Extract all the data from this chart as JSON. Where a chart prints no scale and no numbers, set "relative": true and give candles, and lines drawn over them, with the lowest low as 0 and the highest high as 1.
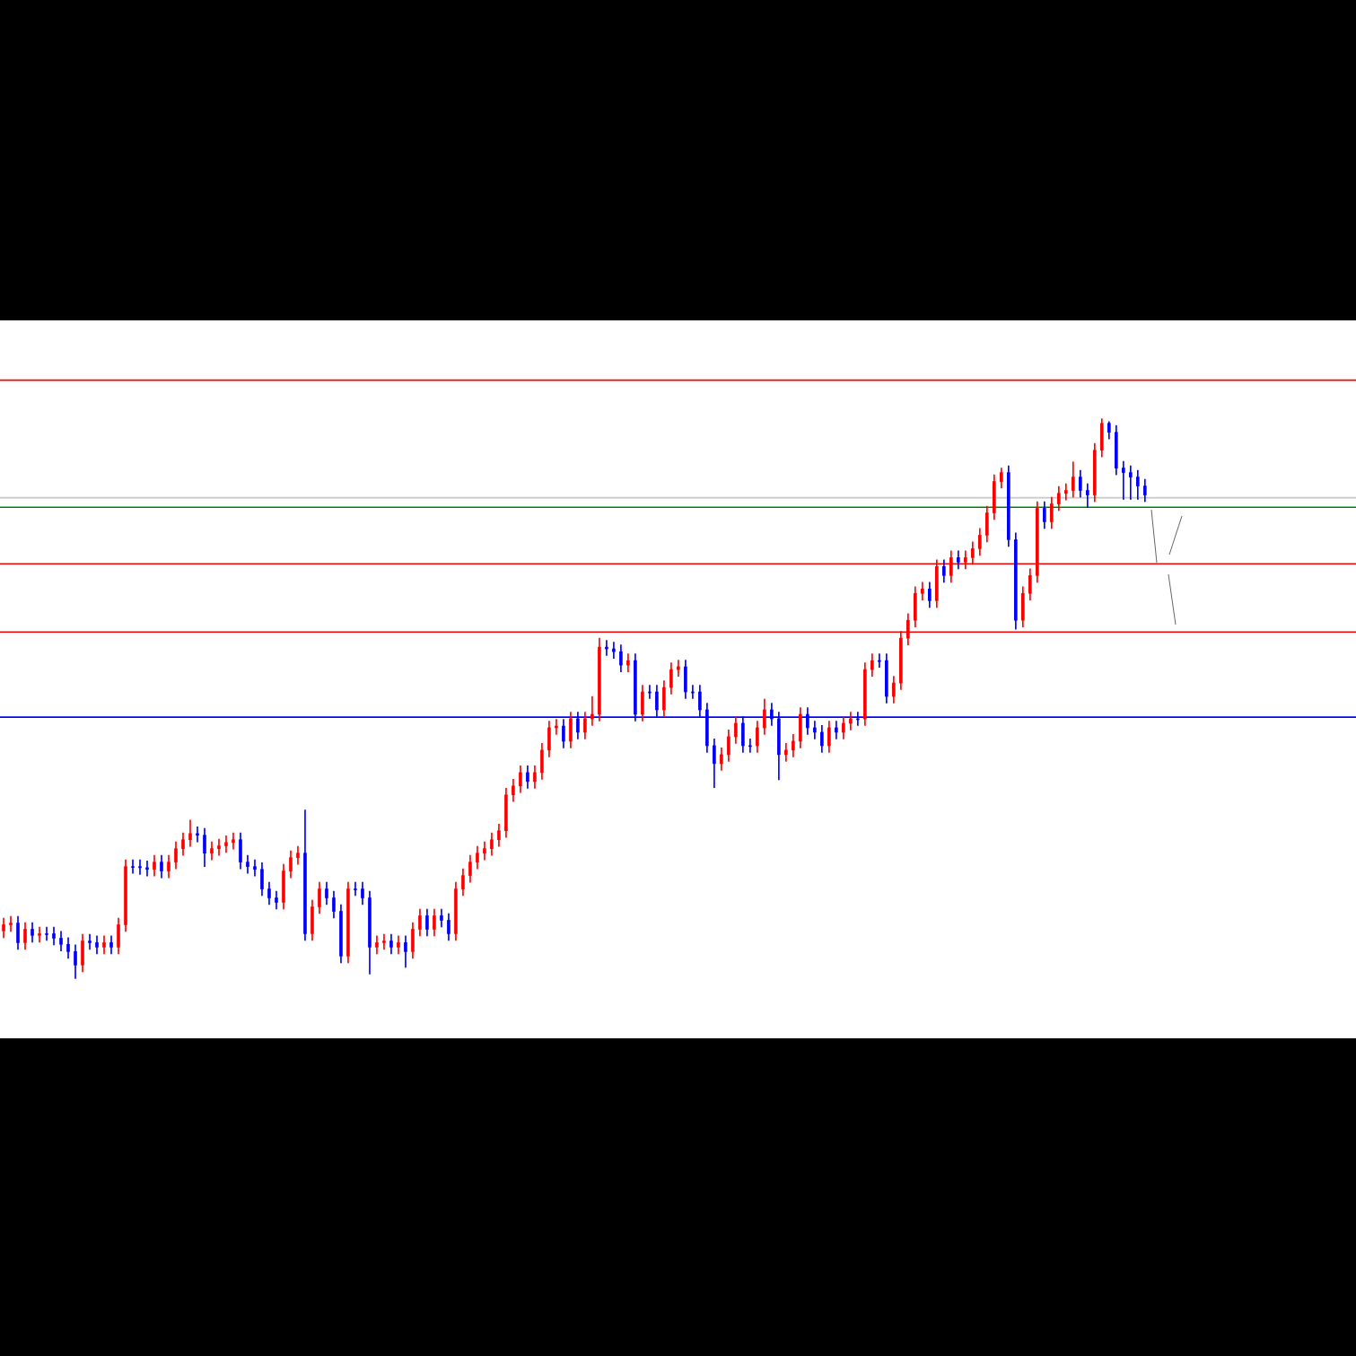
{
  "chart_data": {
    "type": "candlestick",
    "relative": true,
    "categories": [
      null,
      null,
      null,
      null,
      null,
      null,
      null,
      null,
      null,
      null,
      null,
      null,
      null,
      null,
      null,
      null,
      null,
      null,
      null,
      null,
      null,
      null,
      null,
      null,
      null,
      null,
      null,
      null,
      null,
      null,
      null,
      null,
      null,
      null,
      null,
      null,
      null,
      null,
      null,
      null,
      null,
      null,
      null,
      null,
      null,
      null,
      null,
      null,
      null,
      null,
      null,
      null,
      null,
      null,
      null,
      null,
      null,
      null,
      null,
      null,
      null,
      null,
      null,
      null,
      null,
      null,
      null,
      null,
      null,
      null,
      null,
      null,
      null,
      null,
      null,
      null,
      null,
      null,
      null,
      null,
      null,
      null,
      null,
      null,
      null,
      null,
      null,
      null,
      null,
      null,
      null,
      null,
      null,
      null,
      null,
      null,
      null,
      null,
      null,
      null,
      null,
      null,
      null,
      null,
      null,
      null,
      null,
      null,
      null,
      null,
      null,
      null,
      null,
      null,
      null,
      null,
      null,
      null,
      null,
      null,
      null,
      null,
      null,
      null,
      null,
      null,
      null,
      null,
      null,
      null,
      null,
      null,
      null,
      null,
      null,
      null,
      null,
      null,
      null,
      null,
      null,
      null,
      null,
      null,
      null,
      null,
      null,
      null,
      null,
      null,
      null,
      null,
      null,
      null,
      null,
      null,
      null,
      null,
      null,
      null
    ],
    "ohlc": [
      [
        0.085,
        0.108,
        0.073,
        0.096
      ],
      [
        0.096,
        0.111,
        0.084,
        0.099
      ],
      [
        0.099,
        0.111,
        0.052,
        0.064
      ],
      [
        0.064,
        0.1,
        0.052,
        0.088
      ],
      [
        0.088,
        0.1,
        0.065,
        0.077
      ],
      [
        0.077,
        0.092,
        0.065,
        0.08
      ],
      [
        0.08,
        0.092,
        0.068,
        0.08
      ],
      [
        0.08,
        0.092,
        0.06,
        0.072
      ],
      [
        0.072,
        0.084,
        0.049,
        0.061
      ],
      [
        0.061,
        0.073,
        0.036,
        0.048
      ],
      [
        0.048,
        0.06,
        0.0,
        0.024
      ],
      [
        0.024,
        0.079,
        0.012,
        0.067
      ],
      [
        0.067,
        0.079,
        0.052,
        0.064
      ],
      [
        0.064,
        0.076,
        0.044,
        0.056
      ],
      [
        0.056,
        0.076,
        0.044,
        0.064
      ],
      [
        0.064,
        0.076,
        0.044,
        0.056
      ],
      [
        0.056,
        0.108,
        0.044,
        0.096
      ],
      [
        0.096,
        0.212,
        0.084,
        0.2
      ],
      [
        0.2,
        0.212,
        0.188,
        0.2
      ],
      [
        0.2,
        0.212,
        0.186,
        0.198
      ],
      [
        0.198,
        0.21,
        0.183,
        0.195
      ],
      [
        0.195,
        0.22,
        0.183,
        0.208
      ],
      [
        0.208,
        0.22,
        0.18,
        0.192
      ],
      [
        0.192,
        0.22,
        0.18,
        0.208
      ],
      [
        0.208,
        0.244,
        0.196,
        0.232
      ],
      [
        0.232,
        0.26,
        0.22,
        0.248
      ],
      [
        0.248,
        0.283,
        0.236,
        0.259
      ],
      [
        0.259,
        0.271,
        0.244,
        0.256
      ],
      [
        0.256,
        0.268,
        0.2,
        0.224
      ],
      [
        0.224,
        0.244,
        0.212,
        0.232
      ],
      [
        0.232,
        0.249,
        0.22,
        0.237
      ],
      [
        0.237,
        0.255,
        0.225,
        0.243
      ],
      [
        0.243,
        0.26,
        0.231,
        0.248
      ],
      [
        0.248,
        0.26,
        0.196,
        0.208
      ],
      [
        0.208,
        0.22,
        0.188,
        0.2
      ],
      [
        0.2,
        0.212,
        0.183,
        0.195
      ],
      [
        0.195,
        0.207,
        0.148,
        0.16
      ],
      [
        0.16,
        0.172,
        0.132,
        0.144
      ],
      [
        0.144,
        0.156,
        0.124,
        0.136
      ],
      [
        0.136,
        0.204,
        0.124,
        0.192
      ],
      [
        0.192,
        0.228,
        0.18,
        0.216
      ],
      [
        0.216,
        0.236,
        0.204,
        0.224
      ],
      [
        0.224,
        0.301,
        0.068,
        0.08
      ],
      [
        0.08,
        0.14,
        0.068,
        0.128
      ],
      [
        0.128,
        0.172,
        0.116,
        0.16
      ],
      [
        0.16,
        0.172,
        0.132,
        0.144
      ],
      [
        0.144,
        0.156,
        0.108,
        0.12
      ],
      [
        0.12,
        0.132,
        0.028,
        0.04
      ],
      [
        0.04,
        0.172,
        0.028,
        0.16
      ],
      [
        0.16,
        0.172,
        0.148,
        0.16
      ],
      [
        0.16,
        0.172,
        0.132,
        0.144
      ],
      [
        0.144,
        0.156,
        0.008,
        0.056
      ],
      [
        0.056,
        0.076,
        0.044,
        0.064
      ],
      [
        0.064,
        0.079,
        0.052,
        0.067
      ],
      [
        0.067,
        0.079,
        0.044,
        0.056
      ],
      [
        0.056,
        0.076,
        0.044,
        0.064
      ],
      [
        0.064,
        0.076,
        0.02,
        0.048
      ],
      [
        0.048,
        0.1,
        0.036,
        0.088
      ],
      [
        0.088,
        0.124,
        0.076,
        0.112
      ],
      [
        0.112,
        0.124,
        0.076,
        0.088
      ],
      [
        0.088,
        0.124,
        0.076,
        0.112
      ],
      [
        0.112,
        0.124,
        0.092,
        0.104
      ],
      [
        0.104,
        0.116,
        0.068,
        0.08
      ],
      [
        0.08,
        0.172,
        0.068,
        0.16
      ],
      [
        0.16,
        0.196,
        0.148,
        0.184
      ],
      [
        0.184,
        0.22,
        0.172,
        0.208
      ],
      [
        0.208,
        0.236,
        0.196,
        0.224
      ],
      [
        0.224,
        0.244,
        0.212,
        0.232
      ],
      [
        0.232,
        0.26,
        0.22,
        0.248
      ],
      [
        0.248,
        0.276,
        0.236,
        0.264
      ],
      [
        0.264,
        0.34,
        0.252,
        0.328
      ],
      [
        0.328,
        0.356,
        0.316,
        0.344
      ],
      [
        0.344,
        0.38,
        0.332,
        0.368
      ],
      [
        0.368,
        0.38,
        0.34,
        0.352
      ],
      [
        0.352,
        0.38,
        0.34,
        0.368
      ],
      [
        0.368,
        0.42,
        0.356,
        0.408
      ],
      [
        0.408,
        0.46,
        0.396,
        0.448
      ],
      [
        0.448,
        0.463,
        0.436,
        0.451
      ],
      [
        0.451,
        0.463,
        0.412,
        0.424
      ],
      [
        0.424,
        0.476,
        0.412,
        0.464
      ],
      [
        0.464,
        0.476,
        0.428,
        0.44
      ],
      [
        0.44,
        0.476,
        0.428,
        0.464
      ],
      [
        0.464,
        0.504,
        0.452,
        0.472
      ],
      [
        0.472,
        0.608,
        0.46,
        0.592
      ],
      [
        0.592,
        0.604,
        0.577,
        0.589
      ],
      [
        0.589,
        0.601,
        0.572,
        0.584
      ],
      [
        0.584,
        0.596,
        0.548,
        0.56
      ],
      [
        0.56,
        0.58,
        0.548,
        0.568
      ],
      [
        0.568,
        0.58,
        0.46,
        0.472
      ],
      [
        0.472,
        0.524,
        0.46,
        0.512
      ],
      [
        0.512,
        0.524,
        0.5,
        0.512
      ],
      [
        0.512,
        0.524,
        0.468,
        0.48
      ],
      [
        0.48,
        0.532,
        0.468,
        0.52
      ],
      [
        0.52,
        0.564,
        0.508,
        0.552
      ],
      [
        0.552,
        0.569,
        0.54,
        0.557
      ],
      [
        0.557,
        0.569,
        0.5,
        0.512
      ],
      [
        0.512,
        0.524,
        0.5,
        0.512
      ],
      [
        0.512,
        0.524,
        0.468,
        0.48
      ],
      [
        0.48,
        0.492,
        0.404,
        0.416
      ],
      [
        0.416,
        0.428,
        0.341,
        0.384
      ],
      [
        0.384,
        0.412,
        0.372,
        0.4
      ],
      [
        0.4,
        0.444,
        0.388,
        0.432
      ],
      [
        0.432,
        0.468,
        0.42,
        0.456
      ],
      [
        0.456,
        0.468,
        0.404,
        0.416
      ],
      [
        0.416,
        0.428,
        0.404,
        0.416
      ],
      [
        0.416,
        0.46,
        0.404,
        0.448
      ],
      [
        0.448,
        0.499,
        0.436,
        0.48
      ],
      [
        0.48,
        0.492,
        0.452,
        0.464
      ],
      [
        0.464,
        0.476,
        0.355,
        0.4
      ],
      [
        0.4,
        0.42,
        0.388,
        0.408
      ],
      [
        0.408,
        0.436,
        0.396,
        0.424
      ],
      [
        0.424,
        0.484,
        0.412,
        0.472
      ],
      [
        0.472,
        0.484,
        0.436,
        0.448
      ],
      [
        0.448,
        0.46,
        0.428,
        0.44
      ],
      [
        0.44,
        0.452,
        0.404,
        0.416
      ],
      [
        0.416,
        0.46,
        0.404,
        0.448
      ],
      [
        0.448,
        0.46,
        0.428,
        0.44
      ],
      [
        0.44,
        0.468,
        0.428,
        0.456
      ],
      [
        0.456,
        0.476,
        0.444,
        0.464
      ],
      [
        0.464,
        0.476,
        0.452,
        0.464
      ],
      [
        0.464,
        0.564,
        0.452,
        0.552
      ],
      [
        0.552,
        0.58,
        0.54,
        0.568
      ],
      [
        0.568,
        0.58,
        0.556,
        0.568
      ],
      [
        0.568,
        0.58,
        0.492,
        0.504
      ],
      [
        0.504,
        0.54,
        0.492,
        0.528
      ],
      [
        0.528,
        0.62,
        0.516,
        0.608
      ],
      [
        0.608,
        0.652,
        0.596,
        0.64
      ],
      [
        0.64,
        0.7,
        0.628,
        0.688
      ],
      [
        0.688,
        0.708,
        0.676,
        0.696
      ],
      [
        0.696,
        0.708,
        0.663,
        0.675
      ],
      [
        0.675,
        0.748,
        0.663,
        0.736
      ],
      [
        0.736,
        0.748,
        0.708,
        0.72
      ],
      [
        0.72,
        0.764,
        0.708,
        0.752
      ],
      [
        0.752,
        0.764,
        0.732,
        0.744
      ],
      [
        0.744,
        0.764,
        0.732,
        0.752
      ],
      [
        0.752,
        0.78,
        0.74,
        0.768
      ],
      [
        0.768,
        0.804,
        0.756,
        0.792
      ],
      [
        0.792,
        0.844,
        0.78,
        0.832
      ],
      [
        0.832,
        0.9,
        0.82,
        0.888
      ],
      [
        0.888,
        0.912,
        0.876,
        0.904
      ],
      [
        0.904,
        0.916,
        0.772,
        0.784
      ],
      [
        0.784,
        0.796,
        0.624,
        0.64
      ],
      [
        0.64,
        0.7,
        0.628,
        0.688
      ],
      [
        0.688,
        0.732,
        0.676,
        0.72
      ],
      [
        0.72,
        0.852,
        0.708,
        0.84
      ],
      [
        0.84,
        0.852,
        0.804,
        0.816
      ],
      [
        0.816,
        0.86,
        0.804,
        0.848
      ],
      [
        0.848,
        0.879,
        0.836,
        0.867
      ],
      [
        0.867,
        0.884,
        0.855,
        0.872
      ],
      [
        0.872,
        0.923,
        0.86,
        0.896
      ],
      [
        0.896,
        0.908,
        0.86,
        0.872
      ],
      [
        0.872,
        0.884,
        0.842,
        0.864
      ],
      [
        0.864,
        0.956,
        0.852,
        0.944
      ],
      [
        0.944,
        1.0,
        0.932,
        0.992
      ],
      [
        0.992,
        0.995,
        0.964,
        0.976
      ],
      [
        0.976,
        0.988,
        0.9,
        0.912
      ],
      [
        0.912,
        0.924,
        0.856,
        0.904
      ],
      [
        0.904,
        0.916,
        0.856,
        0.896
      ],
      [
        0.896,
        0.908,
        0.856,
        0.88
      ],
      [
        0.88,
        0.892,
        0.852,
        0.864
      ]
    ],
    "colors": [
      "#ff0000",
      "#ff0000",
      "#0000ff",
      "#ff0000",
      "#0000ff",
      "#ff0000",
      "#0000ff",
      "#0000ff",
      "#0000ff",
      "#0000ff",
      "#0000ff",
      "#ff0000",
      "#0000ff",
      "#0000ff",
      "#ff0000",
      "#0000ff",
      "#ff0000",
      "#ff0000",
      "#0000ff",
      "#0000ff",
      "#0000ff",
      "#ff0000",
      "#0000ff",
      "#ff0000",
      "#ff0000",
      "#ff0000",
      "#ff0000",
      "#0000ff",
      "#0000ff",
      "#ff0000",
      "#ff0000",
      "#ff0000",
      "#ff0000",
      "#0000ff",
      "#0000ff",
      "#0000ff",
      "#0000ff",
      "#0000ff",
      "#0000ff",
      "#ff0000",
      "#ff0000",
      "#ff0000",
      "#0000ff",
      "#ff0000",
      "#ff0000",
      "#0000ff",
      "#0000ff",
      "#0000ff",
      "#ff0000",
      "#0000ff",
      "#0000ff",
      "#0000ff",
      "#ff0000",
      "#ff0000",
      "#0000ff",
      "#ff0000",
      "#0000ff",
      "#ff0000",
      "#ff0000",
      "#0000ff",
      "#ff0000",
      "#0000ff",
      "#0000ff",
      "#ff0000",
      "#ff0000",
      "#ff0000",
      "#ff0000",
      "#ff0000",
      "#ff0000",
      "#ff0000",
      "#ff0000",
      "#ff0000",
      "#ff0000",
      "#0000ff",
      "#ff0000",
      "#ff0000",
      "#ff0000",
      "#ff0000",
      "#0000ff",
      "#ff0000",
      "#0000ff",
      "#ff0000",
      "#ff0000",
      "#ff0000",
      "#0000ff",
      "#0000ff",
      "#0000ff",
      "#ff0000",
      "#0000ff",
      "#ff0000",
      "#0000ff",
      "#0000ff",
      "#ff0000",
      "#ff0000",
      "#ff0000",
      "#0000ff",
      "#0000ff",
      "#0000ff",
      "#0000ff",
      "#0000ff",
      "#ff0000",
      "#ff0000",
      "#ff0000",
      "#0000ff",
      "#0000ff",
      "#ff0000",
      "#ff0000",
      "#0000ff",
      "#0000ff",
      "#ff0000",
      "#ff0000",
      "#ff0000",
      "#0000ff",
      "#0000ff",
      "#0000ff",
      "#ff0000",
      "#0000ff",
      "#ff0000",
      "#ff0000",
      "#0000ff",
      "#ff0000",
      "#ff0000",
      "#0000ff",
      "#0000ff",
      "#ff0000",
      "#ff0000",
      "#ff0000",
      "#ff0000",
      "#ff0000",
      "#0000ff",
      "#ff0000",
      "#0000ff",
      "#ff0000",
      "#0000ff",
      "#ff0000",
      "#ff0000",
      "#ff0000",
      "#ff0000",
      "#ff0000",
      "#ff0000",
      "#0000ff",
      "#0000ff",
      "#ff0000",
      "#ff0000",
      "#ff0000",
      "#0000ff",
      "#ff0000",
      "#ff0000",
      "#ff0000",
      "#ff0000",
      "#0000ff",
      "#0000ff",
      "#ff0000",
      "#ff0000",
      "#0000ff",
      "#0000ff",
      "#0000ff",
      "#0000ff",
      "#0000ff",
      "#0000ff"
    ],
    "ref_lines": [
      {
        "axis": "y",
        "value": 1.069,
        "color": "#ff0000"
      },
      {
        "axis": "y",
        "value": 0.859,
        "color": "#c8c8c8"
      },
      {
        "axis": "y",
        "value": 0.842,
        "color": "#008000"
      },
      {
        "axis": "y",
        "value": 0.741,
        "color": "#ff0000"
      },
      {
        "axis": "y",
        "value": 0.619,
        "color": "#ff0000"
      },
      {
        "axis": "y",
        "value": 0.467,
        "color": "#0000ff"
      }
    ]
  }
}
